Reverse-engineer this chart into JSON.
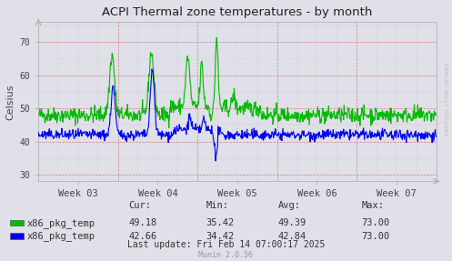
{
  "title": "ACPI Thermal zone temperatures - by month",
  "ylabel": "Celsius",
  "ylim": [
    28,
    76
  ],
  "yticks": [
    30,
    40,
    50,
    60,
    70
  ],
  "xlabel_weeks": [
    "Week 03",
    "Week 04",
    "Week 05",
    "Week 06",
    "Week 07"
  ],
  "background_color": "#dfe0e8",
  "line1_color": "#00bb00",
  "line2_color": "#0000ee",
  "legend1_label": "x86_pkg_temp",
  "legend2_label": "x86_pkg_temp",
  "footer_text": "Last update: Fri Feb 14 07:00:17 2025",
  "munin_text": "Munin 2.0.56",
  "rrdtool_text": "RRDTOOL / TOBI OETIKER",
  "stats": {
    "cur1": "49.18",
    "min1": "35.42",
    "avg1": "49.39",
    "max1": "73.00",
    "cur2": "42.66",
    "min2": "34.42",
    "avg2": "42.84",
    "max2": "73.00"
  },
  "grid_color": "#cc6666",
  "spine_color": "#aaaaaa"
}
